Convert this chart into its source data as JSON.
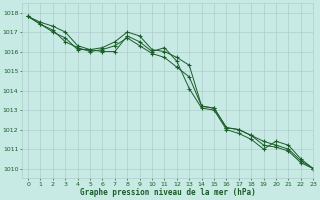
{
  "background_color": "#c8eae4",
  "grid_color": "#b0cccc",
  "line_color": "#1a5c2a",
  "marker_color": "#1a5c2a",
  "xlabel": "Graphe pression niveau de la mer (hPa)",
  "xlim": [
    -0.5,
    23
  ],
  "ylim": [
    1009.5,
    1018.5
  ],
  "yticks": [
    1010,
    1011,
    1012,
    1013,
    1014,
    1015,
    1016,
    1017,
    1018
  ],
  "xticks": [
    0,
    1,
    2,
    3,
    4,
    5,
    6,
    7,
    8,
    9,
    10,
    11,
    12,
    13,
    14,
    15,
    16,
    17,
    18,
    19,
    20,
    21,
    22,
    23
  ],
  "line1": [
    1017.8,
    1017.4,
    1017.0,
    1016.7,
    1016.1,
    1016.1,
    1016.0,
    1016.0,
    1016.8,
    1016.5,
    1016.0,
    1016.2,
    1015.5,
    1014.1,
    1013.1,
    1013.0,
    1012.0,
    1011.8,
    1011.5,
    1011.0,
    1011.4,
    1011.2,
    1010.5,
    1010.0
  ],
  "line2": [
    1017.8,
    1017.4,
    1017.1,
    1016.5,
    1016.2,
    1016.0,
    1016.1,
    1016.3,
    1016.7,
    1016.3,
    1015.9,
    1015.7,
    1015.2,
    1014.7,
    1013.2,
    1013.1,
    1012.1,
    1012.0,
    1011.7,
    1011.2,
    1011.1,
    1010.9,
    1010.3,
    1010.0
  ],
  "line3": [
    1017.8,
    1017.5,
    1017.3,
    1017.0,
    1016.3,
    1016.1,
    1016.2,
    1016.5,
    1017.0,
    1016.8,
    1016.1,
    1016.0,
    1015.7,
    1015.3,
    1013.2,
    1013.1,
    1012.1,
    1012.0,
    1011.7,
    1011.4,
    1011.2,
    1011.0,
    1010.4,
    1010.0
  ]
}
